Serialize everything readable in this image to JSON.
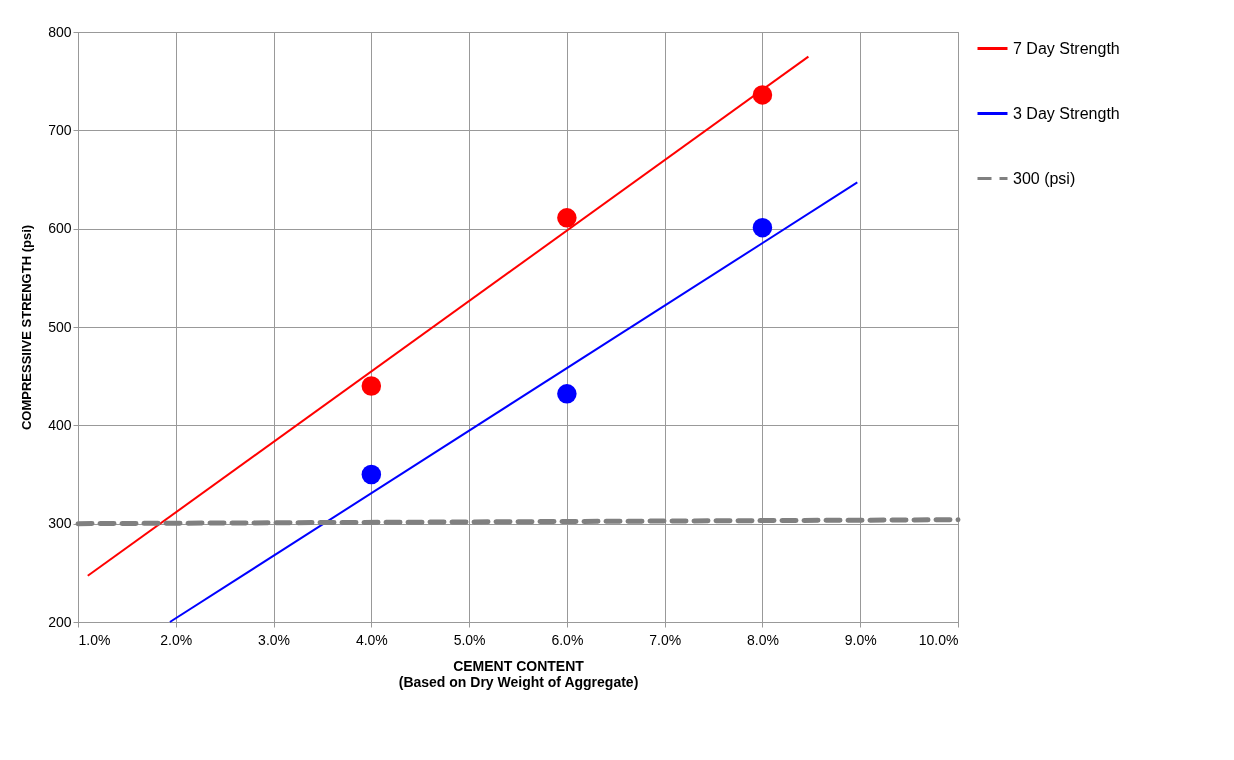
{
  "chart_data": {
    "type": "scatter",
    "xlabel": "CEMENT CONTENT (Based on Dry Weight of Aggregate)",
    "ylabel": "COMPRESSIIVE STRENGTH (psi)",
    "xlim": [
      1,
      10
    ],
    "xticks": [
      {
        "value": 1,
        "label": "1.0%"
      },
      {
        "value": 2,
        "label": "2.0%"
      },
      {
        "value": 3,
        "label": "3.0%"
      },
      {
        "value": 4,
        "label": "4.0%"
      },
      {
        "value": 5,
        "label": "5.0%"
      },
      {
        "value": 6,
        "label": "6.0%"
      },
      {
        "value": 7,
        "label": "7.0%"
      },
      {
        "value": 8,
        "label": "8.0%"
      },
      {
        "value": 9,
        "label": "9.0%"
      },
      {
        "value": 10,
        "label": "10.0%"
      }
    ],
    "ylim": [
      200,
      800
    ],
    "yticks": [
      200,
      300,
      400,
      500,
      600,
      700,
      800
    ],
    "grid": true,
    "legend": "right",
    "series": [
      {
        "marker": "circle",
        "color": "#ff0000",
        "x": [
          4,
          6,
          8
        ],
        "values": [
          440,
          611,
          736
        ]
      },
      {
        "marker": "circle",
        "color": "#0000ff",
        "x": [
          4,
          6,
          8
        ],
        "values": [
          350,
          432,
          601
        ]
      },
      {
        "type": "line",
        "name": "7 Day Strength",
        "color": "#ff0000",
        "line_style": "solid",
        "x": [
          1.1,
          8.47
        ],
        "values": [
          247,
          775
        ]
      },
      {
        "type": "line",
        "name": "3 Day Strength",
        "color": "#0000ff",
        "line_style": "solid",
        "x": [
          1.94,
          8.97
        ],
        "values": [
          200,
          647
        ]
      },
      {
        "type": "line",
        "name": "300 (psi)",
        "color": "#808080",
        "line_style": "dashed",
        "x": [
          1,
          10
        ],
        "values": [
          300,
          304
        ]
      }
    ]
  }
}
